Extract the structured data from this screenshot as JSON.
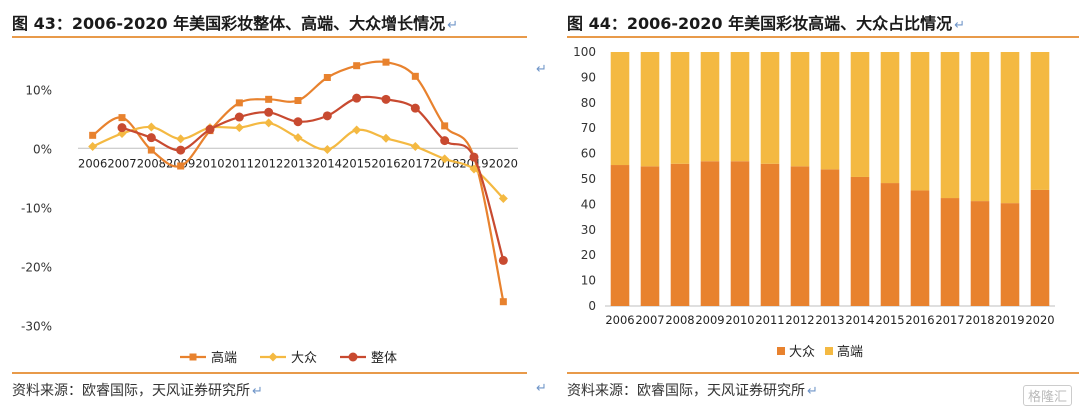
{
  "panels": [
    {
      "title": "图 43：2006-2020 年美国彩妆整体、高端、大众增长情况",
      "source": "资料来源：欧睿国际，天风证券研究所"
    },
    {
      "title": "图 44：2006-2020 年美国彩妆高端、大众占比情况",
      "source": "资料来源：欧睿国际，天风证券研究所"
    }
  ],
  "watermark": "格隆汇",
  "return_glyph": "↵",
  "colors": {
    "rule": "#e89a4a",
    "high": "#e8822e",
    "mass": "#f4b942",
    "total": "#c84a30"
  },
  "chart_data": [
    {
      "type": "line",
      "title": "",
      "categories": [
        "2006",
        "2007",
        "2008",
        "2009",
        "2010",
        "2011",
        "2012",
        "2013",
        "2014",
        "2015",
        "2016",
        "2017",
        "2018",
        "2019",
        "2020"
      ],
      "y_ticks": [
        "10%",
        "0%",
        "-10%",
        "-20%",
        "-30%"
      ],
      "y_tick_values": [
        10,
        0,
        -10,
        -20,
        -30
      ],
      "ylim": [
        -33,
        17
      ],
      "legend_position": "bottom",
      "series": [
        {
          "name": "高端",
          "color": "#e8822e",
          "marker": "square",
          "values": [
            2.2,
            5.2,
            -0.3,
            -3.0,
            3.0,
            7.7,
            8.3,
            8.1,
            12.0,
            14.0,
            14.6,
            12.2,
            3.8,
            -1.5,
            -26.0
          ]
        },
        {
          "name": "大众",
          "color": "#f4b942",
          "marker": "diamond",
          "values": [
            0.3,
            2.5,
            3.6,
            1.6,
            3.5,
            3.5,
            4.3,
            1.8,
            -0.2,
            3.1,
            1.7,
            0.3,
            -1.8,
            -3.5,
            -8.5
          ]
        },
        {
          "name": "整体",
          "color": "#c84a30",
          "marker": "circle",
          "values": [
            null,
            3.5,
            1.8,
            -0.3,
            3.2,
            5.3,
            6.1,
            4.5,
            5.5,
            8.5,
            8.3,
            6.8,
            1.3,
            -1.5,
            -19.0
          ]
        }
      ]
    },
    {
      "type": "bar",
      "stacked": true,
      "title": "",
      "categories": [
        "2006",
        "2007",
        "2008",
        "2009",
        "2010",
        "2011",
        "2012",
        "2013",
        "2014",
        "2015",
        "2016",
        "2017",
        "2018",
        "2019",
        "2020"
      ],
      "y_ticks": [
        "0",
        "10",
        "20",
        "30",
        "40",
        "50",
        "60",
        "70",
        "80",
        "90",
        "100"
      ],
      "ylim": [
        0,
        100
      ],
      "legend_position": "bottom",
      "series": [
        {
          "name": "大众",
          "color": "#e8822e",
          "values": [
            55.5,
            55.0,
            56.0,
            57.0,
            57.0,
            56.0,
            55.0,
            53.8,
            50.8,
            48.4,
            45.5,
            42.5,
            41.3,
            40.5,
            45.7
          ]
        },
        {
          "name": "高端",
          "color": "#f4b942",
          "values": [
            44.5,
            45.0,
            44.0,
            43.0,
            43.0,
            44.0,
            45.0,
            46.2,
            49.2,
            51.6,
            54.5,
            57.5,
            58.7,
            59.5,
            54.3
          ]
        }
      ]
    }
  ]
}
